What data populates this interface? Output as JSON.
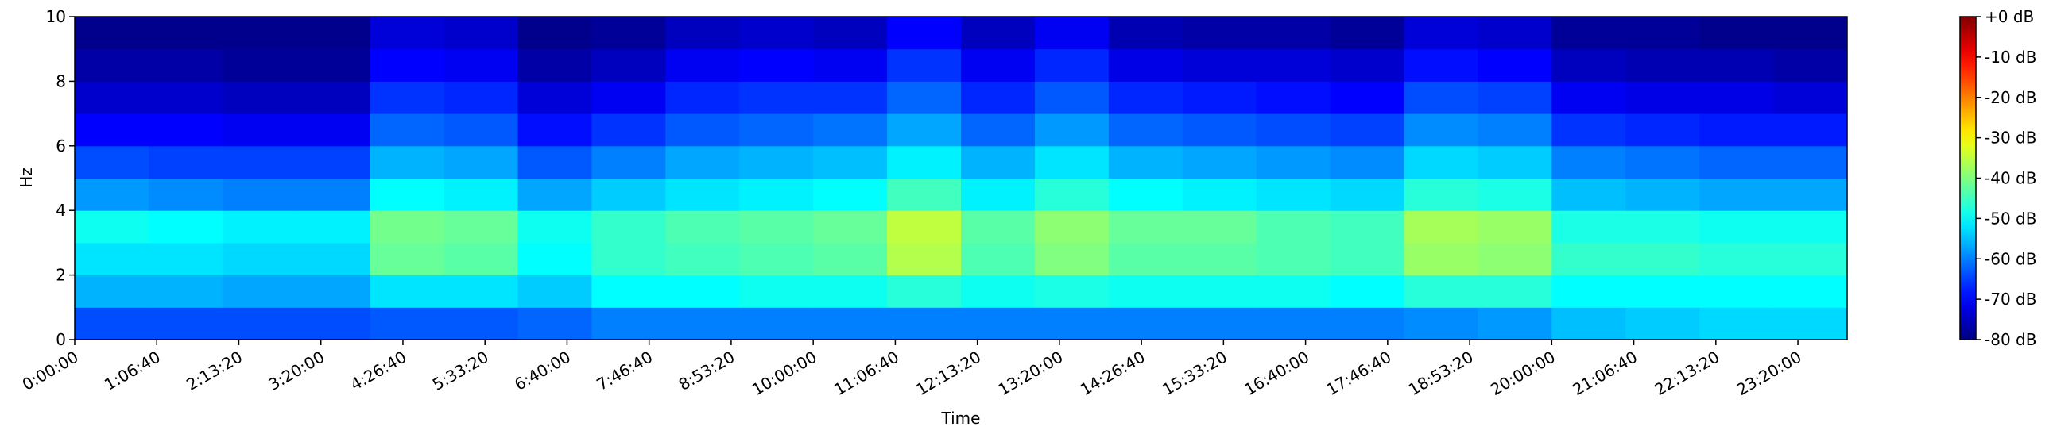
{
  "chart_data": {
    "type": "heatmap",
    "colormap": "jet",
    "xlabel": "Time",
    "ylabel": "Hz",
    "xlim": [
      0,
      86400
    ],
    "ylim": [
      0,
      10
    ],
    "zlim": [
      -80,
      0
    ],
    "xticks": [
      {
        "value": 0,
        "label": "0:00:00"
      },
      {
        "value": 4000,
        "label": "1:06:40"
      },
      {
        "value": 8000,
        "label": "2:13:20"
      },
      {
        "value": 12000,
        "label": "3:20:00"
      },
      {
        "value": 16000,
        "label": "4:26:40"
      },
      {
        "value": 20000,
        "label": "5:33:20"
      },
      {
        "value": 24000,
        "label": "6:40:00"
      },
      {
        "value": 28000,
        "label": "7:46:40"
      },
      {
        "value": 32000,
        "label": "8:53:20"
      },
      {
        "value": 36000,
        "label": "10:00:00"
      },
      {
        "value": 40000,
        "label": "11:06:40"
      },
      {
        "value": 44000,
        "label": "12:13:20"
      },
      {
        "value": 48000,
        "label": "13:20:00"
      },
      {
        "value": 52000,
        "label": "14:26:40"
      },
      {
        "value": 56000,
        "label": "15:33:20"
      },
      {
        "value": 60000,
        "label": "16:40:00"
      },
      {
        "value": 64000,
        "label": "17:46:40"
      },
      {
        "value": 68000,
        "label": "18:53:20"
      },
      {
        "value": 72000,
        "label": "20:00:00"
      },
      {
        "value": 76000,
        "label": "21:06:40"
      },
      {
        "value": 80000,
        "label": "22:13:20"
      },
      {
        "value": 84000,
        "label": "23:20:00"
      }
    ],
    "yticks": [
      0,
      2,
      4,
      6,
      8,
      10
    ],
    "zticks": [
      {
        "value": 0,
        "label": "+0 dB"
      },
      {
        "value": -10,
        "label": "-10 dB"
      },
      {
        "value": -20,
        "label": "-20 dB"
      },
      {
        "value": -30,
        "label": "-30 dB"
      },
      {
        "value": -40,
        "label": "-40 dB"
      },
      {
        "value": -50,
        "label": "-50 dB"
      },
      {
        "value": -60,
        "label": "-60 dB"
      },
      {
        "value": -70,
        "label": "-70 dB"
      },
      {
        "value": -80,
        "label": "-80 dB"
      }
    ],
    "x_bins": [
      0,
      3600,
      7200,
      10800,
      14400,
      18000,
      21600,
      25200,
      28800,
      32400,
      36000,
      39600,
      43200,
      46800,
      50400,
      54000,
      57600,
      61200,
      64800,
      68400,
      72000,
      75600,
      79200,
      82800,
      86400
    ],
    "y_bins": [
      0,
      1,
      2,
      3,
      4,
      5,
      6,
      7,
      8,
      9,
      10
    ],
    "values": [
      [
        -64,
        -64,
        -64,
        -64,
        -63,
        -63,
        -62,
        -60,
        -60,
        -60,
        -60,
        -60,
        -60,
        -60,
        -60,
        -60,
        -60,
        -60,
        -59,
        -58,
        -55,
        -54,
        -53,
        -53
      ],
      [
        -56,
        -56,
        -57,
        -57,
        -52,
        -52,
        -54,
        -50,
        -50,
        -49,
        -49,
        -47,
        -49,
        -48,
        -49,
        -49,
        -49,
        -50,
        -47,
        -47,
        -50,
        -50,
        -50,
        -50
      ],
      [
        -52,
        -52,
        -53,
        -53,
        -42,
        -43,
        -50,
        -46,
        -45,
        -44,
        -43,
        -36,
        -44,
        -40,
        -43,
        -43,
        -44,
        -45,
        -38,
        -39,
        -46,
        -46,
        -47,
        -47
      ],
      [
        -49,
        -50,
        -51,
        -51,
        -41,
        -42,
        -49,
        -46,
        -44,
        -43,
        -42,
        -35,
        -43,
        -39,
        -42,
        -42,
        -44,
        -45,
        -37,
        -38,
        -48,
        -48,
        -49,
        -49
      ],
      [
        -58,
        -59,
        -60,
        -60,
        -50,
        -51,
        -57,
        -54,
        -52,
        -51,
        -50,
        -45,
        -51,
        -47,
        -50,
        -51,
        -52,
        -53,
        -47,
        -48,
        -55,
        -56,
        -57,
        -57
      ],
      [
        -64,
        -65,
        -65,
        -65,
        -56,
        -57,
        -63,
        -60,
        -57,
        -56,
        -55,
        -51,
        -56,
        -52,
        -56,
        -57,
        -58,
        -59,
        -53,
        -54,
        -60,
        -61,
        -62,
        -62
      ],
      [
        -70,
        -70,
        -71,
        -71,
        -62,
        -63,
        -69,
        -66,
        -63,
        -62,
        -61,
        -57,
        -62,
        -58,
        -62,
        -63,
        -64,
        -65,
        -59,
        -60,
        -66,
        -67,
        -68,
        -68
      ],
      [
        -74,
        -74,
        -75,
        -75,
        -66,
        -67,
        -73,
        -71,
        -67,
        -66,
        -66,
        -62,
        -67,
        -63,
        -67,
        -68,
        -69,
        -70,
        -64,
        -65,
        -71,
        -72,
        -72,
        -73
      ],
      [
        -77,
        -77,
        -78,
        -78,
        -70,
        -71,
        -77,
        -75,
        -71,
        -70,
        -71,
        -66,
        -71,
        -67,
        -72,
        -73,
        -73,
        -74,
        -69,
        -70,
        -75,
        -76,
        -76,
        -77
      ],
      [
        -79,
        -79,
        -79,
        -79,
        -73,
        -74,
        -79,
        -78,
        -75,
        -74,
        -75,
        -70,
        -75,
        -71,
        -76,
        -77,
        -77,
        -78,
        -73,
        -74,
        -78,
        -78,
        -79,
        -79
      ]
    ]
  }
}
